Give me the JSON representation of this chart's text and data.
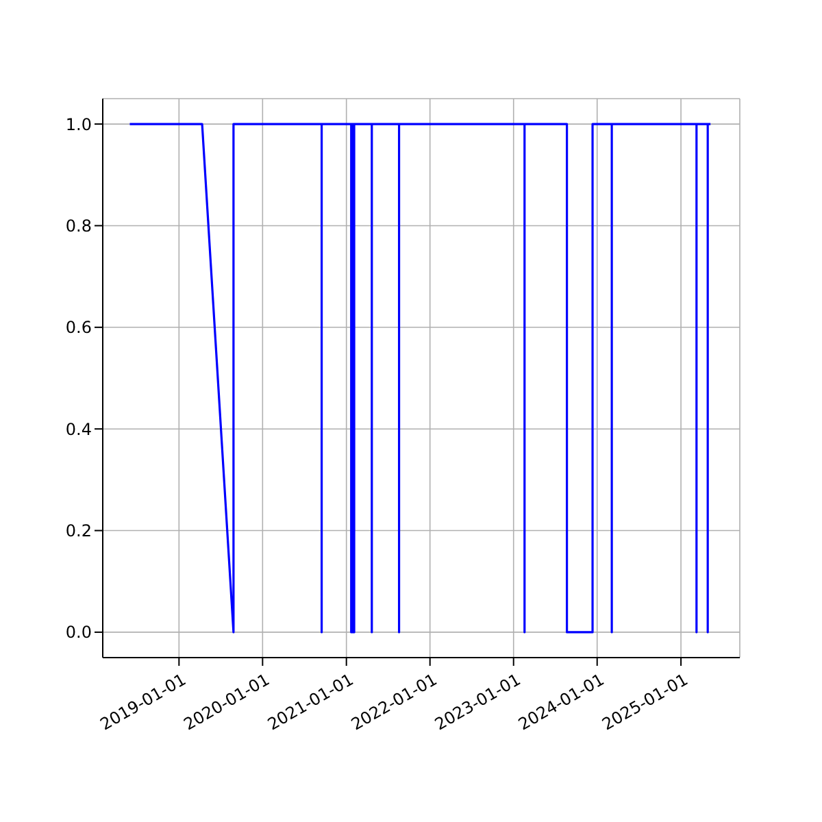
{
  "chart_data": {
    "type": "line",
    "x": [
      "2018-05-31",
      "2019-04-12",
      "2019-08-27",
      "2019-08-27",
      "2020-09-15",
      "2020-09-15",
      "2020-09-15",
      "2021-01-22",
      "2021-01-22",
      "2021-01-22",
      "2021-01-28",
      "2021-01-28",
      "2021-01-28",
      "2021-02-04",
      "2021-02-04",
      "2021-02-04",
      "2021-04-22",
      "2021-04-22",
      "2021-04-22",
      "2021-08-19",
      "2021-08-19",
      "2021-08-19",
      "2023-02-18",
      "2023-02-18",
      "2023-02-18",
      "2023-08-22",
      "2023-08-22",
      "2023-12-12",
      "2023-12-12",
      "2024-03-05",
      "2024-03-05",
      "2024-03-05",
      "2025-03-10",
      "2025-03-10",
      "2025-03-10",
      "2025-04-28",
      "2025-04-28",
      "2025-04-28",
      "2025-05-10"
    ],
    "series": [
      {
        "color": "#0000ff",
        "values": [
          1,
          1,
          0,
          1,
          1,
          0,
          1,
          1,
          0,
          1,
          1,
          0,
          1,
          1,
          0,
          1,
          1,
          0,
          1,
          1,
          0,
          1,
          1,
          0,
          1,
          1,
          0,
          0,
          1,
          1,
          0,
          1,
          1,
          0,
          1,
          1,
          0,
          1,
          1
        ]
      }
    ],
    "xlim": [
      "2018-02-02",
      "2025-09-15"
    ],
    "xticks": [
      "2019-01-01",
      "2020-01-01",
      "2021-01-01",
      "2022-01-01",
      "2023-01-01",
      "2024-01-01",
      "2025-01-01"
    ],
    "ylim": [
      -0.05,
      1.05
    ],
    "yticks": [
      {
        "value": 0,
        "label": "0.0"
      },
      {
        "value": 0.2,
        "label": "0.2"
      },
      {
        "value": 0.4,
        "label": "0.4"
      },
      {
        "value": 0.6,
        "label": "0.6"
      },
      {
        "value": 0.8,
        "label": "0.8"
      },
      {
        "value": 1,
        "label": "1.0"
      }
    ],
    "grid": true,
    "marker": "none",
    "line_style": "solid"
  }
}
